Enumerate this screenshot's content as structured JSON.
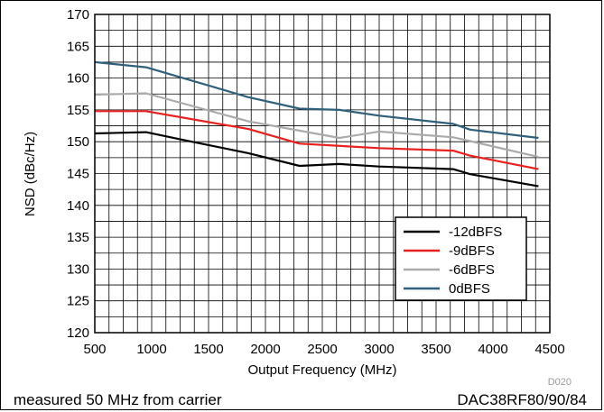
{
  "chart_data": {
    "type": "line",
    "xlabel": "Output Frequency (MHz)",
    "ylabel": "NSD (dBc/Hz)",
    "xlim": [
      500,
      4500
    ],
    "ylim": [
      120,
      170
    ],
    "x_ticks": [
      500,
      1000,
      1500,
      2000,
      2500,
      3000,
      3500,
      4000,
      4500
    ],
    "y_ticks": [
      120,
      125,
      130,
      135,
      140,
      145,
      150,
      155,
      160,
      165,
      170
    ],
    "grid": true,
    "legend_position": "bottom-right",
    "series": [
      {
        "name": "-12dBFS",
        "color": "#000000",
        "x": [
          500,
          950,
          1300,
          1850,
          2300,
          2650,
          3000,
          3650,
          3800,
          4400
        ],
        "y": [
          151.3,
          151.5,
          150.2,
          148.2,
          146.2,
          146.5,
          146.1,
          145.7,
          144.9,
          143.0
        ]
      },
      {
        "name": "-9dBFS",
        "color": "#e8211f",
        "x": [
          500,
          950,
          1850,
          2300,
          3000,
          3650,
          3800,
          4400
        ],
        "y": [
          154.8,
          154.8,
          152.0,
          149.7,
          149.0,
          148.6,
          147.8,
          145.7
        ]
      },
      {
        "name": "-6dBFS",
        "color": "#aaaaaa",
        "x": [
          500,
          950,
          1850,
          2650,
          3000,
          3650,
          3800,
          4400
        ],
        "y": [
          157.4,
          157.6,
          153.2,
          150.6,
          151.6,
          150.7,
          150.1,
          147.6
        ]
      },
      {
        "name": "0dBFS",
        "color": "#2f5f7a",
        "x": [
          500,
          950,
          1850,
          2300,
          2650,
          3000,
          3650,
          3800,
          4400
        ],
        "y": [
          162.5,
          161.7,
          157.0,
          155.2,
          155.0,
          154.1,
          152.8,
          151.9,
          150.6
        ]
      }
    ]
  },
  "figure_id": "D020",
  "footer": {
    "left": "measured 50 MHz from carrier",
    "right": "DAC38RF80/90/84"
  }
}
